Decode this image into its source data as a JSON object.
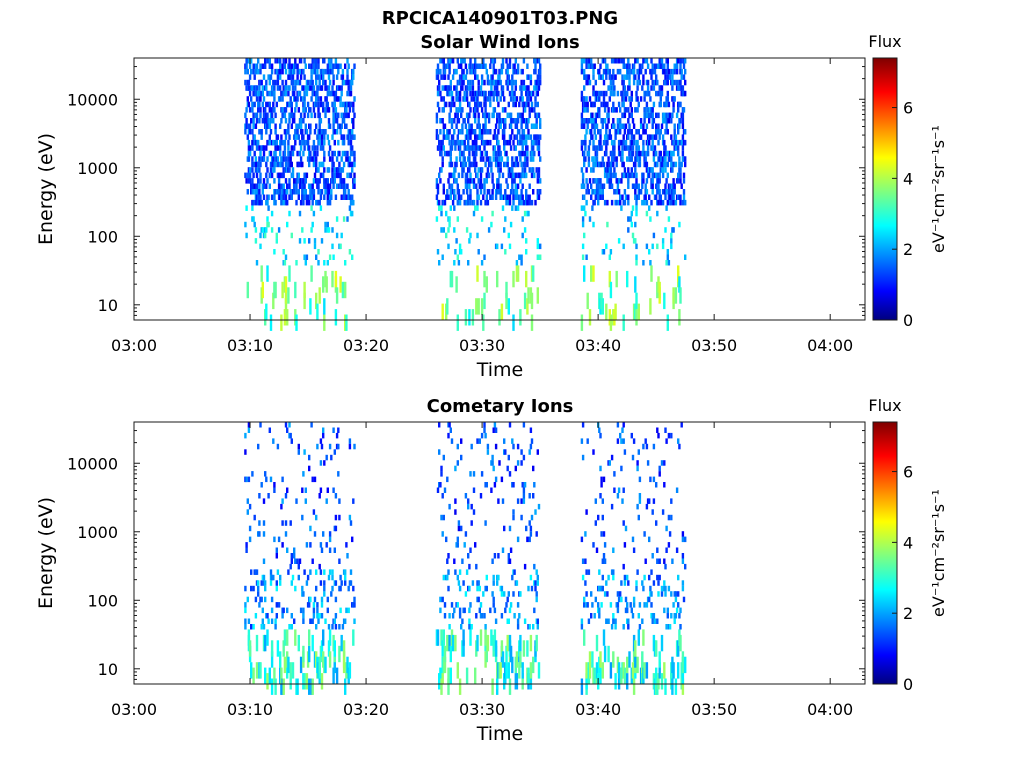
{
  "figure": {
    "title": "RPCICA140901T03.PNG"
  },
  "colorbar": {
    "title": "Flux",
    "label": "eV⁻¹cm⁻²sr⁻¹s⁻¹",
    "range": [
      0,
      7.4
    ],
    "ticks": [
      "0",
      "2",
      "4",
      "6"
    ],
    "colormap": "jet"
  },
  "chart_data": [
    {
      "type": "heatmap",
      "title": "Solar Wind Ions",
      "xlabel": "Time",
      "ylabel": "Energy (eV)",
      "x_ticks": [
        "03:00",
        "03:10",
        "03:20",
        "03:30",
        "03:40",
        "03:50",
        "04:00"
      ],
      "y_ticks": [
        "10",
        "100",
        "1000",
        "10000"
      ],
      "y_scale": "log",
      "x_range": [
        "03:00",
        "04:03"
      ],
      "y_range": [
        6,
        40000
      ],
      "activity_intervals": [
        [
          "03:09:30",
          "03:19:00"
        ],
        [
          "03:26:00",
          "03:35:00"
        ],
        [
          "03:38:30",
          "03:47:30"
        ]
      ],
      "flux_typical": {
        "high_energy": 1.5,
        "mid_energy": 2.5,
        "low_energy": 3.5
      }
    },
    {
      "type": "heatmap",
      "title": "Cometary Ions",
      "xlabel": "Time",
      "ylabel": "Energy (eV)",
      "x_ticks": [
        "03:00",
        "03:10",
        "03:20",
        "03:30",
        "03:40",
        "03:50",
        "04:00"
      ],
      "y_ticks": [
        "10",
        "100",
        "1000",
        "10000"
      ],
      "y_scale": "log",
      "x_range": [
        "03:00",
        "04:03"
      ],
      "y_range": [
        6,
        40000
      ],
      "activity_intervals": [
        [
          "03:09:30",
          "03:19:00"
        ],
        [
          "03:26:00",
          "03:35:00"
        ],
        [
          "03:38:30",
          "03:47:30"
        ]
      ],
      "flux_typical": {
        "high_energy": 1.5,
        "mid_energy": 2.0,
        "low_energy": 3.0
      }
    }
  ]
}
